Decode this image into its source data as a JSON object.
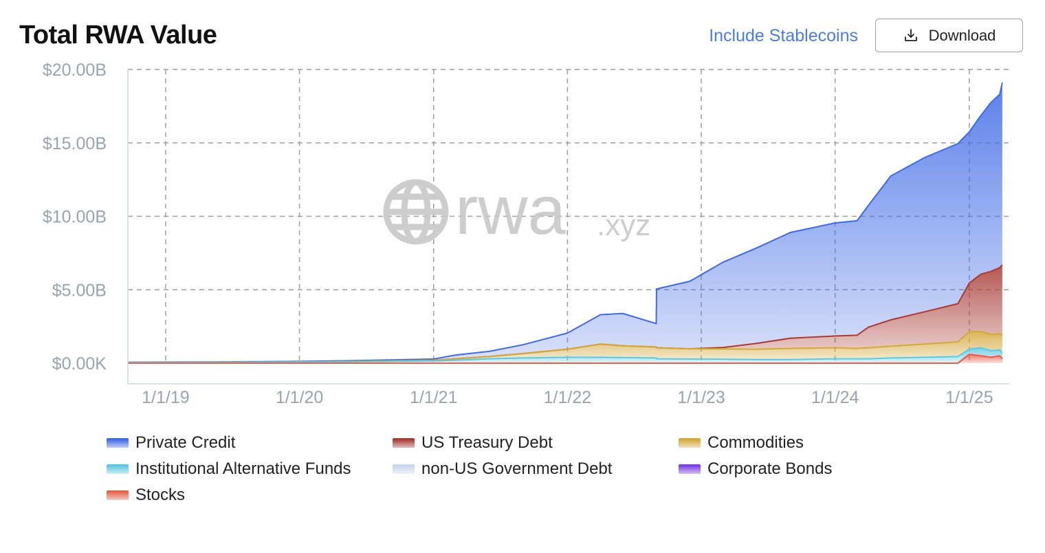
{
  "header": {
    "title": "Total RWA Value",
    "include_label": "Include Stablecoins",
    "download_label": "Download",
    "download_icon": "download-icon",
    "accent_color": "#4a7ce6"
  },
  "watermark": {
    "main": "rwa",
    "suffix": ".xyz",
    "icon": "globe-icon"
  },
  "chart_data": {
    "type": "area",
    "stacked": true,
    "title": "Total RWA Value",
    "xlabel": "",
    "ylabel": "",
    "x_ticks": [
      "1/1/19",
      "1/1/20",
      "1/1/21",
      "1/1/22",
      "1/1/23",
      "1/1/24",
      "1/1/25"
    ],
    "y_ticks": [
      "$0.00K",
      "$5.00B",
      "$10.00B",
      "$15.00B",
      "$20.00B"
    ],
    "ylim": [
      0,
      20
    ],
    "y_unit": "$B",
    "xlim": [
      "2018-09-20",
      "2025-04-20"
    ],
    "grid": true,
    "legend_position": "bottom",
    "x": [
      "2018-09-20",
      "2019-06-01",
      "2020-01-01",
      "2020-06-01",
      "2021-01-01",
      "2021-03-01",
      "2021-06-01",
      "2021-09-01",
      "2022-01-01",
      "2022-04-01",
      "2022-06-01",
      "2022-08-31",
      "2022-09-01",
      "2022-12-01",
      "2023-03-01",
      "2023-06-01",
      "2023-09-01",
      "2024-01-01",
      "2024-03-01",
      "2024-04-01",
      "2024-06-01",
      "2024-09-01",
      "2024-12-01",
      "2025-01-01",
      "2025-02-01",
      "2025-03-01",
      "2025-03-25",
      "2025-04-01"
    ],
    "series": [
      {
        "name": "Stocks",
        "color": "#e8604a",
        "values": [
          0,
          0,
          0,
          0,
          0,
          0,
          0,
          0,
          0,
          0,
          0,
          0,
          0,
          0,
          0,
          0,
          0,
          0,
          0,
          0,
          0,
          0,
          0,
          0.6,
          0.5,
          0.4,
          0.5,
          0.3
        ]
      },
      {
        "name": "Corporate Bonds",
        "color": "#7b3fe4",
        "values": [
          0,
          0,
          0,
          0,
          0,
          0,
          0,
          0,
          0,
          0,
          0,
          0,
          0,
          0,
          0,
          0,
          0,
          0,
          0,
          0,
          0,
          0,
          0,
          0,
          0,
          0,
          0,
          0
        ]
      },
      {
        "name": "non-US Government Debt",
        "color": "#c9d6ea",
        "values": [
          0,
          0,
          0,
          0,
          0,
          0,
          0,
          0,
          0,
          0,
          0,
          0,
          0,
          0,
          0,
          0,
          0,
          0,
          0,
          0,
          0,
          0,
          0,
          0.05,
          0.05,
          0.05,
          0.05,
          0.05
        ]
      },
      {
        "name": "Institutional Alternative Funds",
        "color": "#5cc8e0",
        "values": [
          0.05,
          0.06,
          0.08,
          0.1,
          0.15,
          0.2,
          0.3,
          0.35,
          0.4,
          0.4,
          0.38,
          0.35,
          0.3,
          0.28,
          0.27,
          0.25,
          0.25,
          0.3,
          0.3,
          0.3,
          0.35,
          0.4,
          0.45,
          0.3,
          0.5,
          0.4,
          0.35,
          0.35
        ]
      },
      {
        "name": "Commodities",
        "color": "#d4a73a",
        "values": [
          0,
          0,
          0,
          0.02,
          0.05,
          0.1,
          0.15,
          0.3,
          0.55,
          0.9,
          0.8,
          0.75,
          0.75,
          0.7,
          0.7,
          0.7,
          0.75,
          0.75,
          0.7,
          0.75,
          0.8,
          0.9,
          1.0,
          1.2,
          1.1,
          1.1,
          1.1,
          1.2
        ]
      },
      {
        "name": "US Treasury Debt",
        "color": "#a83a35",
        "values": [
          0,
          0,
          0,
          0,
          0,
          0,
          0,
          0,
          0,
          0,
          0,
          0,
          0,
          0,
          0.1,
          0.4,
          0.7,
          0.8,
          0.9,
          1.4,
          1.8,
          2.2,
          2.6,
          3.3,
          3.9,
          4.3,
          4.5,
          4.8
        ]
      },
      {
        "name": "Private Credit",
        "color": "#3f6ae6",
        "values": [
          0.02,
          0.03,
          0.04,
          0.06,
          0.08,
          0.25,
          0.35,
          0.6,
          1.1,
          2.0,
          2.2,
          1.6,
          4.0,
          4.6,
          5.8,
          6.5,
          7.2,
          7.7,
          7.8,
          8.3,
          9.8,
          10.5,
          10.9,
          10.3,
          10.8,
          11.5,
          11.8,
          12.4
        ]
      }
    ]
  },
  "legend": [
    {
      "label": "Private Credit",
      "color": "#3f6ae6"
    },
    {
      "label": "US Treasury Debt",
      "color": "#a83a35"
    },
    {
      "label": "Commodities",
      "color": "#d4a73a"
    },
    {
      "label": "Institutional Alternative Funds",
      "color": "#5cc8e0"
    },
    {
      "label": "non-US Government Debt",
      "color": "#c9d6ea"
    },
    {
      "label": "Corporate Bonds",
      "color": "#7b3fe4"
    },
    {
      "label": "Stocks",
      "color": "#e8604a"
    }
  ]
}
